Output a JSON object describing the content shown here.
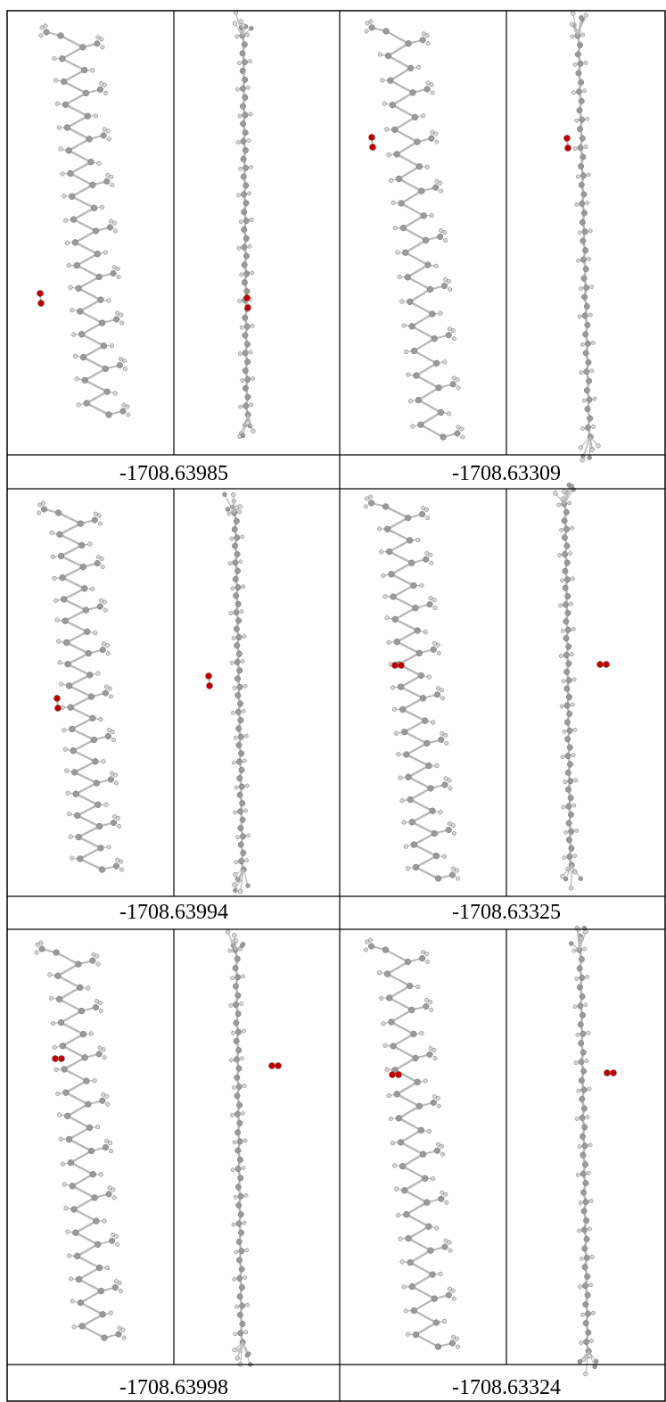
{
  "colors": {
    "border": "#000000",
    "carbon": "#9a9a9a",
    "hydrogen": "#d6d6d6",
    "bond": "#b8b8b8",
    "oxygen": "#c00000",
    "background": "#ffffff"
  },
  "figure": {
    "rows": [
      {
        "left": {
          "energy": "-1708.63985",
          "molecule_position": "bottom",
          "o2_side": "left"
        },
        "right": {
          "energy": "-1708.63309",
          "molecule_position": "top",
          "o2_side": "left"
        }
      },
      {
        "left": {
          "energy": "-1708.63994",
          "molecule_position": "middle",
          "o2_side": "left"
        },
        "right": {
          "energy": "-1708.63325",
          "molecule_position": "middle",
          "o2_side": "right"
        }
      },
      {
        "left": {
          "energy": "-1708.63998",
          "molecule_position": "upper",
          "o2_side": "right"
        },
        "right": {
          "energy": "-1708.63324",
          "molecule_position": "upper",
          "o2_side": "right"
        }
      }
    ]
  }
}
